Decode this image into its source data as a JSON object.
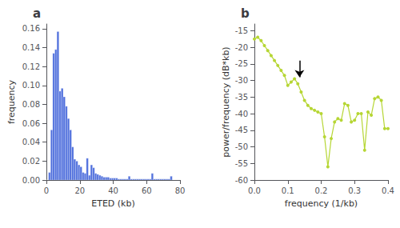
{
  "chart_data": [
    {
      "type": "histogram",
      "title": "a",
      "xlabel": "ETED (kb)",
      "ylabel": "frequency",
      "bins": [
        0,
        1.256,
        2.512,
        3.768,
        5.024,
        6.28,
        7.536,
        8.792,
        10.048,
        11.304,
        12.56,
        13.816,
        15.072,
        16.328,
        17.584,
        18.84,
        20.096,
        21.352,
        22.608,
        23.864,
        25.12,
        26.376,
        27.632,
        28.888,
        30.144,
        31.4,
        32.656,
        33.912,
        35.168,
        36.424,
        37.68,
        38.936,
        40.192,
        41.448,
        42.704,
        43.96,
        45.216,
        46.472,
        47.728,
        48.984,
        50.24,
        51.496,
        52.752,
        54.008,
        55.264,
        56.52,
        57.776,
        59.032,
        60.288,
        61.544,
        62.8,
        64.056,
        65.312,
        66.568,
        67.824,
        69.08,
        70.336,
        71.592,
        72.848,
        74.104,
        75.36
      ],
      "values": [
        0.0,
        0.008,
        0.053,
        0.134,
        0.138,
        0.157,
        0.094,
        0.097,
        0.088,
        0.078,
        0.065,
        0.053,
        0.035,
        0.022,
        0.02,
        0.016,
        0.014,
        0.008,
        0.007,
        0.023,
        0.005,
        0.016,
        0.013,
        0.007,
        0.006,
        0.005,
        0.004,
        0.003,
        0.003,
        0.003,
        0.002,
        0.002,
        0.002,
        0.002,
        0.001,
        0.001,
        0.001,
        0.001,
        0.001,
        0.004,
        0.001,
        0.001,
        0.001,
        0.001,
        0.001,
        0.001,
        0.001,
        0.001,
        0.001,
        0.001,
        0.007,
        0.001,
        0.001,
        0.001,
        0.001,
        0.001,
        0.001,
        0.001,
        0.001,
        0.004
      ],
      "xlim": [
        0,
        80
      ],
      "xticks": [
        0,
        20,
        40,
        60,
        80
      ],
      "ylim": [
        0,
        0.165
      ],
      "yticks": [
        {
          "value": 0,
          "label": "0.00"
        },
        0.02,
        0.04,
        0.06,
        0.08,
        {
          "value": 0.1,
          "label": "0.10"
        },
        0.12,
        0.14,
        0.16
      ],
      "grid": false
    },
    {
      "type": "line",
      "title": "b",
      "xlabel": "frequency (1/kb)",
      "ylabel": "power/frequency (dB*kb)",
      "x": [
        0.0,
        0.01,
        0.02,
        0.03,
        0.04,
        0.05,
        0.06,
        0.07,
        0.08,
        0.09,
        0.1,
        0.11,
        0.12,
        0.13,
        0.14,
        0.15,
        0.16,
        0.17,
        0.18,
        0.19,
        0.2,
        0.21,
        0.22,
        0.23,
        0.24,
        0.25,
        0.26,
        0.27,
        0.28,
        0.29,
        0.3,
        0.31,
        0.32,
        0.33,
        0.34,
        0.35,
        0.36,
        0.37,
        0.38,
        0.39,
        0.4
      ],
      "values": [
        -17.5,
        -17.0,
        -18.0,
        -19.5,
        -21.0,
        -22.5,
        -24.0,
        -25.5,
        -27.0,
        -28.5,
        -31.5,
        -30.5,
        -29.5,
        -31.0,
        -33.5,
        -36.0,
        -37.5,
        -38.5,
        -39.0,
        -39.5,
        -40.0,
        -47.0,
        -56.0,
        -47.5,
        -42.5,
        -41.5,
        -42.0,
        -37.0,
        -37.5,
        -42.5,
        -42.0,
        -40.0,
        -40.0,
        -51.0,
        -39.5,
        -40.5,
        -35.5,
        -35.0,
        -36.0,
        -44.5,
        -44.5
      ],
      "marker": "circle",
      "xlim": [
        0,
        0.4
      ],
      "xticks": [
        {
          "value": 0,
          "label": "0.0"
        },
        0.1,
        0.2,
        0.3,
        0.4
      ],
      "ylim": [
        -60,
        -13
      ],
      "yticks": [
        -60,
        -55,
        -50,
        -45,
        -40,
        -35,
        -30,
        -25,
        -20,
        -15
      ],
      "arrow": {
        "x": 0.135,
        "y_tail": -24.0,
        "y_tip": -29.0
      },
      "grid": false
    }
  ]
}
